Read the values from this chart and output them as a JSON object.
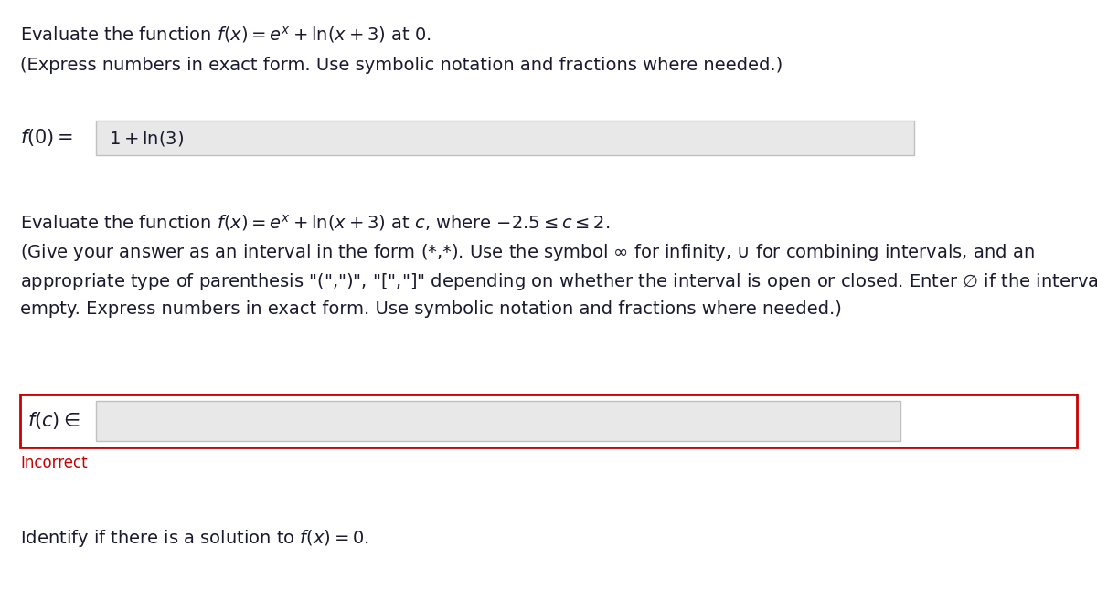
{
  "page_bg": "#ffffff",
  "text_color": "#1a1a2e",
  "red_color": "#cc0000",
  "gray_box_bg": "#e8e8e8",
  "gray_box_border": "#c0c0c0",
  "red_box_border": "#cc0000",
  "white_box_bg": "#ffffff",
  "line1_q1": "Evaluate the function $f(x) = e^x + \\ln(x + 3)$ at 0.",
  "line2_q1": "(Express numbers in exact form. Use symbolic notation and fractions where needed.)",
  "label_f0": "$f(0) =$",
  "answer_f0": "$1 + \\ln(3)$",
  "line1_q2": "Evaluate the function $f(x) = e^x + \\ln(x + 3)$ at $c$, where $-2.5 \\leq c \\leq 2$.",
  "line2_q2": "(Give your answer as an interval in the form (*,*). Use the symbol $\\infty$ for infinity, $\\cup$ for combining intervals, and an",
  "line3_q2": "appropriate type of parenthesis \"(\",\")\", \"[\",\"]\" depending on whether the interval is open or closed. Enter $\\varnothing$ if the interval is",
  "line4_q2": "empty. Express numbers in exact form. Use symbolic notation and fractions where needed.)",
  "label_fc": "$f(c) \\in$",
  "incorrect_label": "Incorrect",
  "line1_q3": "Identify if there is a solution to $f(x) = 0$.",
  "fs_main": 14,
  "fs_label": 15,
  "fs_incorrect": 12
}
